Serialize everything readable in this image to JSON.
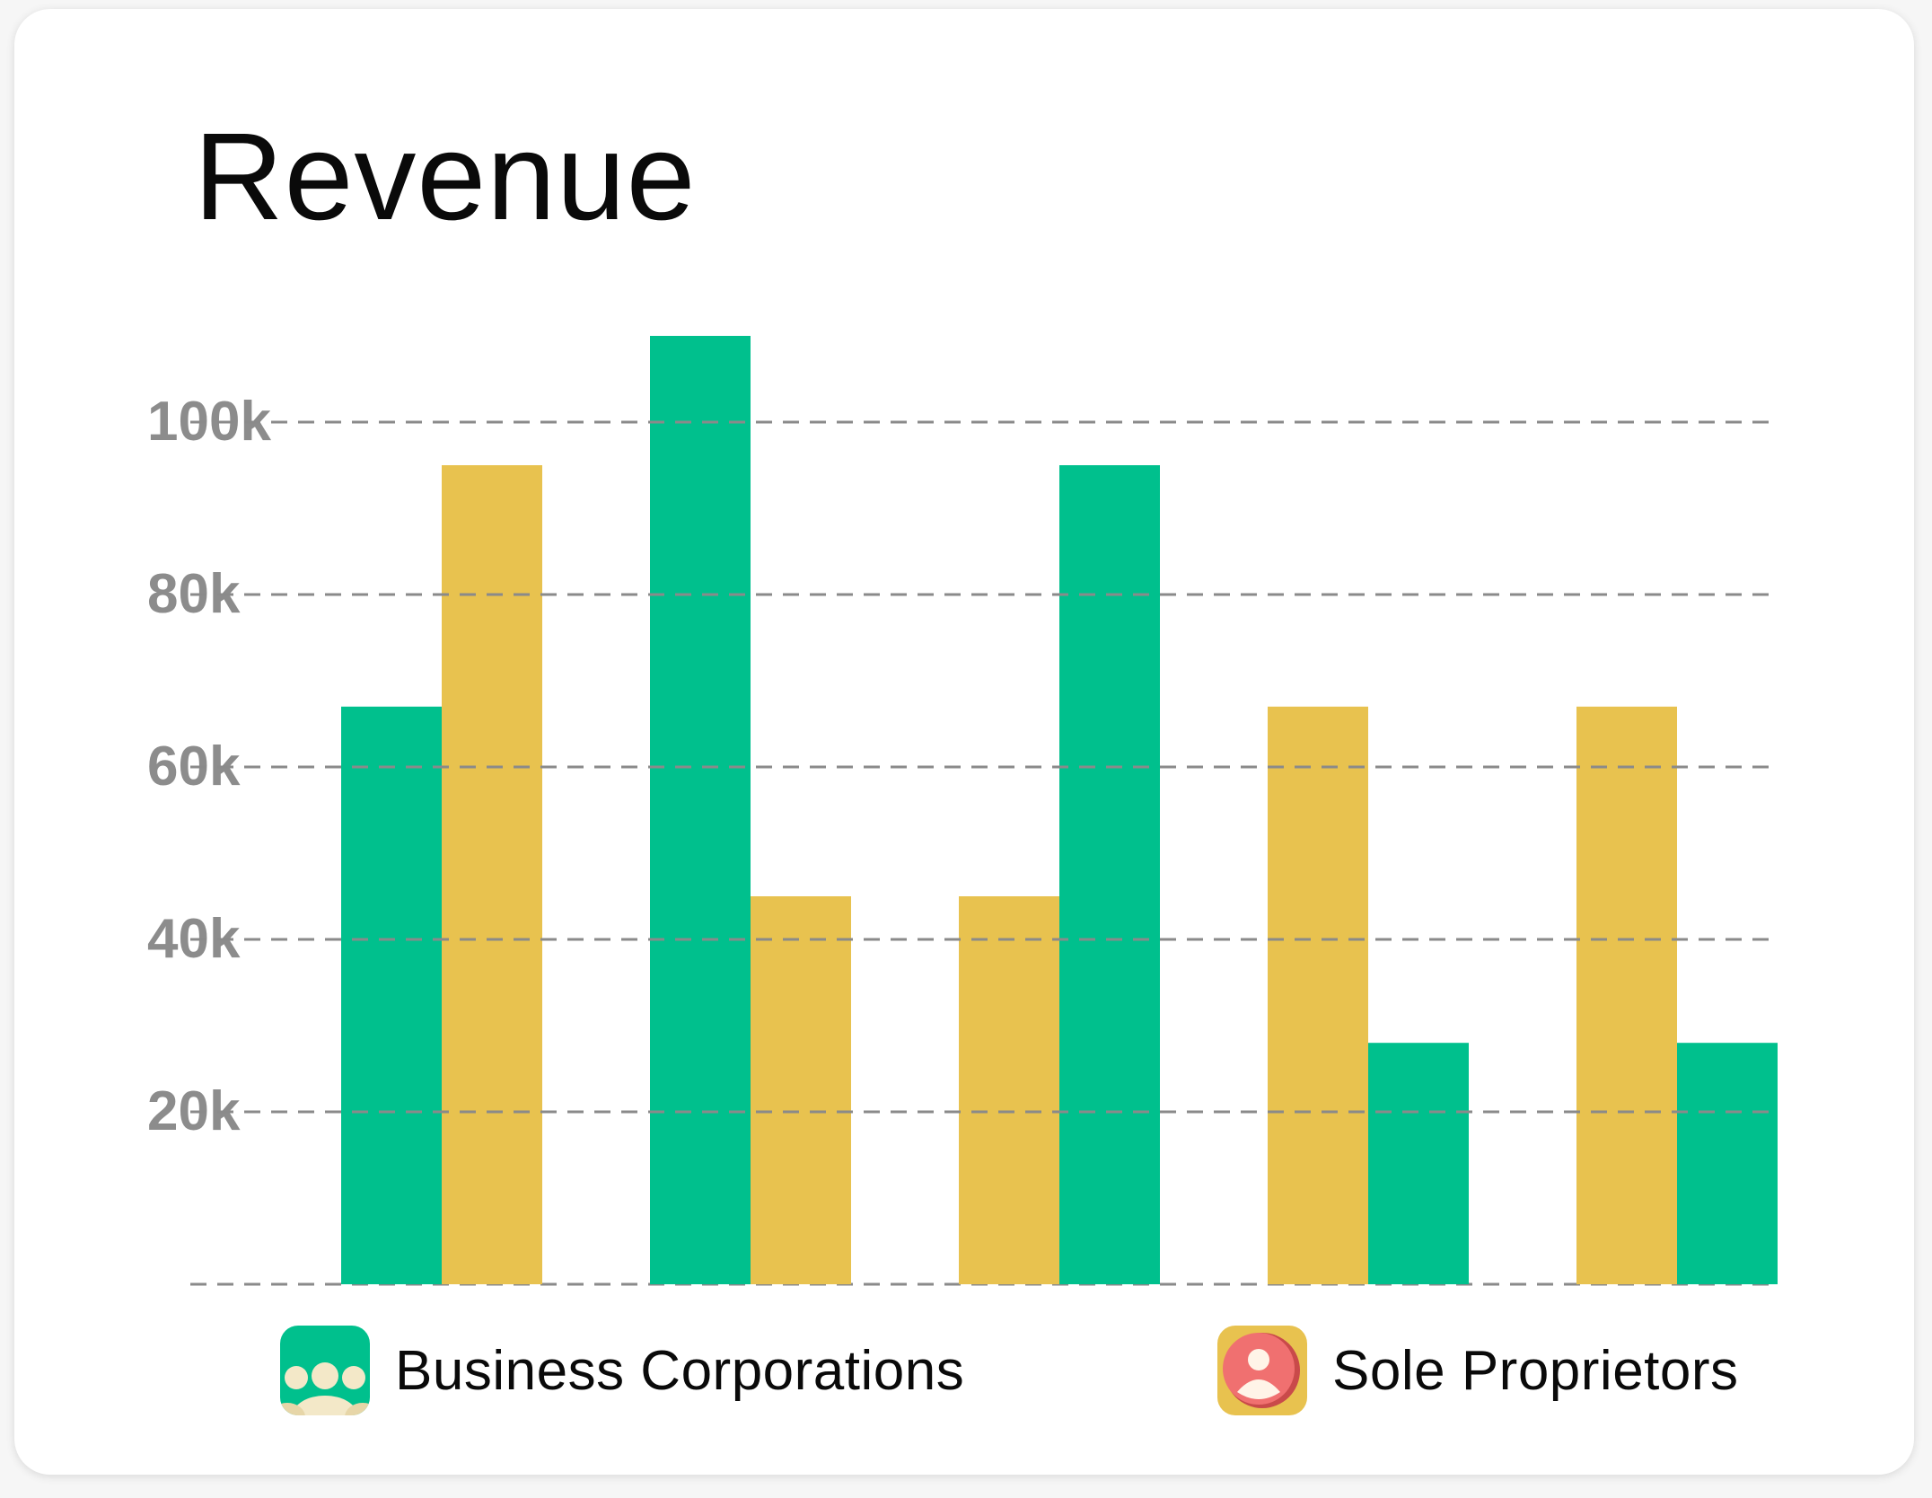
{
  "chart_data": {
    "type": "bar",
    "title": "Revenue",
    "xlabel": "",
    "ylabel": "",
    "ylim": [
      0,
      100000
    ],
    "yticks": [
      20000,
      40000,
      60000,
      80000,
      100000
    ],
    "ytick_labels": [
      "20k",
      "40k",
      "60k",
      "80k",
      "100k"
    ],
    "grid": "dashed-horizontal",
    "groups": [
      [
        {
          "series": "Business Corporations",
          "value": 67000
        },
        {
          "series": "Sole Proprietors",
          "value": 95000
        }
      ],
      [
        {
          "series": "Business Corporations",
          "value": 110000
        },
        {
          "series": "Sole Proprietors",
          "value": 45000
        }
      ],
      [
        {
          "series": "Sole Proprietors",
          "value": 45000
        },
        {
          "series": "Business Corporations",
          "value": 95000
        }
      ],
      [
        {
          "series": "Sole Proprietors",
          "value": 67000
        },
        {
          "series": "Business Corporations",
          "value": 28000
        }
      ],
      [
        {
          "series": "Sole Proprietors",
          "value": 67000
        },
        {
          "series": "Business Corporations",
          "value": 28000
        }
      ]
    ],
    "series": [
      {
        "name": "Business Corporations",
        "color": "#00c08d",
        "icon": "group-icon"
      },
      {
        "name": "Sole Proprietors",
        "color": "#e8c24f",
        "icon": "person-icon"
      }
    ],
    "legend_position": "bottom"
  },
  "colors": {
    "grid": "#8a8a8a",
    "tick_label": "#8c8c8c",
    "green": "#00c08d",
    "yellow": "#e8c24f",
    "icon_cream": "#f3e8c8",
    "icon_red": "#f07070"
  }
}
